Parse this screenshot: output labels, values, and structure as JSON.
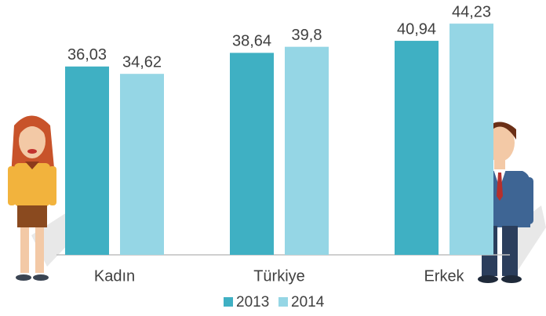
{
  "chart_data": {
    "type": "bar",
    "categories": [
      "Kadın",
      "Türkiye",
      "Erkek"
    ],
    "series": [
      {
        "name": "2013",
        "color": "#3fb0c3",
        "values": [
          36.03,
          38.64,
          40.94
        ],
        "value_labels": [
          "36,03",
          "38,64",
          "40,94"
        ]
      },
      {
        "name": "2014",
        "color": "#95d6e5",
        "values": [
          34.62,
          39.8,
          44.23
        ],
        "value_labels": [
          "34,62",
          "39,8",
          "44,23"
        ]
      }
    ],
    "ylim": [
      0,
      48
    ],
    "grid": false,
    "legend": "bottom"
  }
}
